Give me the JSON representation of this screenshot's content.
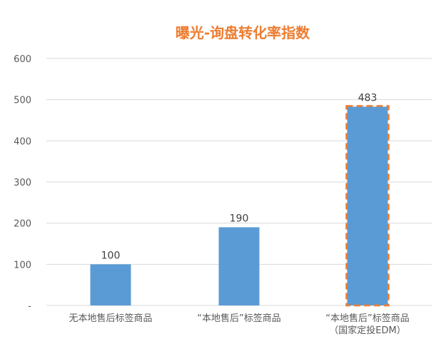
{
  "chart_data": {
    "type": "bar",
    "title": "曝光-询盘转化率指数",
    "categories": [
      [
        "无本地售后标签商品"
      ],
      [
        "“本地售后”标签商品"
      ],
      [
        "“本地售后”标签商品",
        "（国家定投EDM）"
      ]
    ],
    "values": [
      100,
      190,
      483
    ],
    "data_labels": [
      "100",
      "190",
      "483"
    ],
    "highlight_index": 2,
    "ylim": [
      0,
      600
    ],
    "yticks": [
      0,
      100,
      200,
      300,
      400,
      500,
      600
    ],
    "ytick_labels": [
      "-",
      "100",
      "200",
      "300",
      "400",
      "500",
      "600"
    ],
    "xlabel": "",
    "ylabel": "",
    "grid": true,
    "legend": "none",
    "colors": {
      "bar": "#5b9bd5",
      "highlight_border": "#ed7d31",
      "title": "#ed7d31",
      "grid": "#d9d9d9",
      "axis_text": "#595959",
      "data_label": "#404040"
    }
  }
}
